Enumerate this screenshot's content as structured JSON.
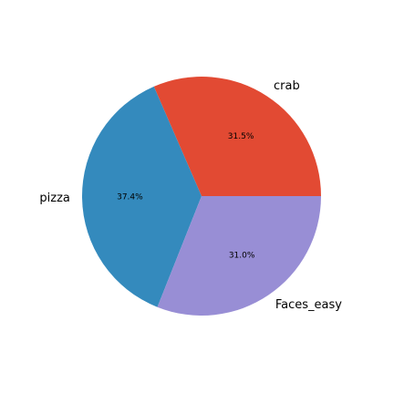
{
  "chart_data": {
    "type": "pie",
    "categories": [
      "crab",
      "pizza",
      "Faces_easy"
    ],
    "values": [
      31.5,
      37.4,
      31.0
    ],
    "value_labels": [
      "31.5%",
      "37.4%",
      "31.0%"
    ],
    "colors": [
      "#E24A33",
      "#348ABD",
      "#988ED5"
    ],
    "start_angle_deg": 0,
    "direction": "counterclockwise",
    "legend": "none",
    "title": ""
  }
}
